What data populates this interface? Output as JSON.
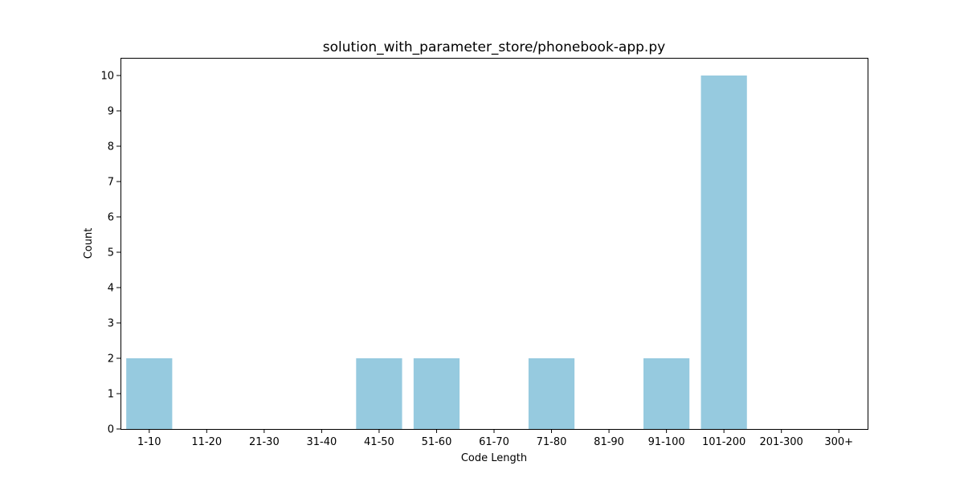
{
  "chart_data": {
    "type": "bar",
    "title": "solution_with_parameter_store/phonebook-app.py",
    "xlabel": "Code Length",
    "ylabel": "Count",
    "categories": [
      "1-10",
      "11-20",
      "21-30",
      "31-40",
      "41-50",
      "51-60",
      "61-70",
      "71-80",
      "81-90",
      "91-100",
      "101-200",
      "201-300",
      "300+"
    ],
    "values": [
      2,
      0,
      0,
      0,
      2,
      2,
      0,
      2,
      0,
      2,
      10,
      0,
      0
    ],
    "yticks": [
      0,
      1,
      2,
      3,
      4,
      5,
      6,
      7,
      8,
      9,
      10
    ],
    "ylim": [
      0,
      10.5
    ],
    "grid": false,
    "bar_color": "#96cadf"
  }
}
